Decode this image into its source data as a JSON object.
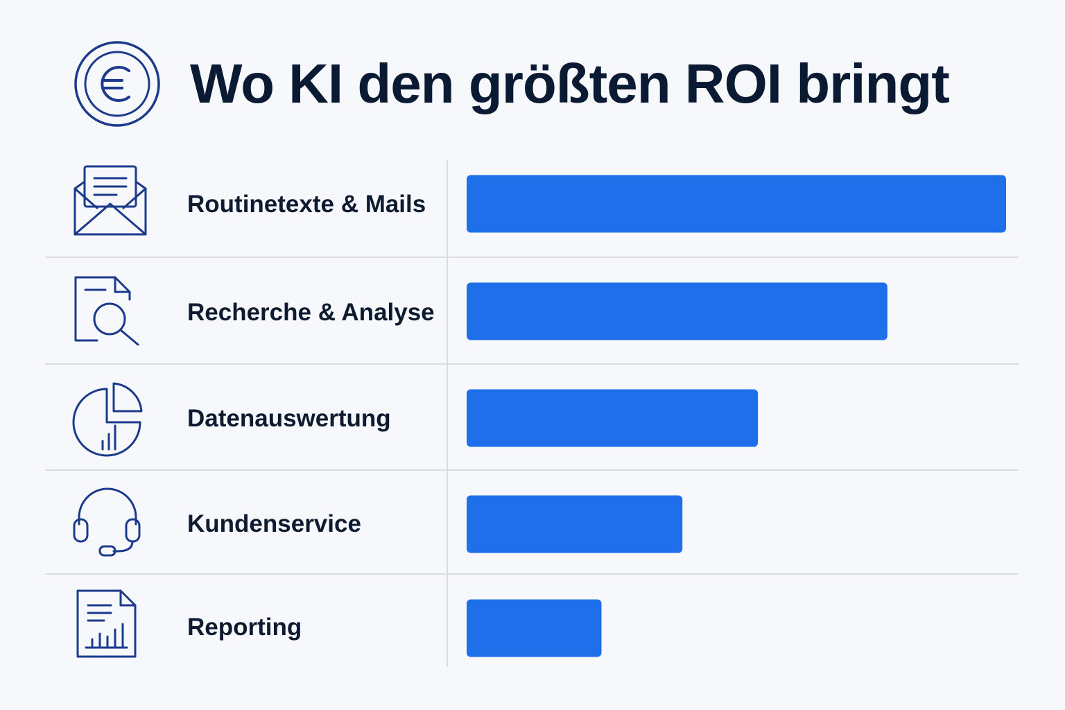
{
  "header": {
    "title": "Wo KI den größten ROI bringt",
    "icon": "euro-coin-icon"
  },
  "colors": {
    "bar": "#1f6fea",
    "text": "#0e1a30",
    "icon": "#1b3a8c",
    "divider": "#d8dde6",
    "background": "#f6f8fb"
  },
  "chart_data": {
    "type": "bar",
    "orientation": "horizontal",
    "title": "Wo KI den größten ROI bringt",
    "categories": [
      "Routinetexte & Mails",
      "Recherche & Analyse",
      "Datenauswertung",
      "Kundenservice",
      "Reporting"
    ],
    "icons": [
      "envelope-icon",
      "document-search-icon",
      "pie-chart-icon",
      "headset-icon",
      "report-icon"
    ],
    "values": [
      100,
      78,
      54,
      40,
      25
    ],
    "xlim": [
      0,
      100
    ],
    "grid": false,
    "legend": "none"
  }
}
